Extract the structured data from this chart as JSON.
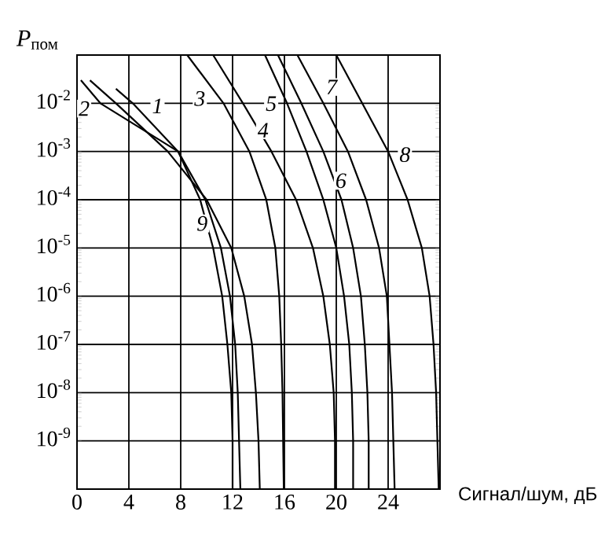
{
  "chart_data": {
    "type": "line",
    "log": "y",
    "grid": true,
    "xlabel": "Сигнал/шум, дБ",
    "ylabel": "*P*$_{пом}$",
    "xlim": [
      0,
      28
    ],
    "ylim": [
      1e-10,
      0.1
    ],
    "xticks": [
      0,
      4,
      8,
      12,
      16,
      20,
      24
    ],
    "yticks": [
      {
        "value": 1e-09,
        "label": "10$^{-9}$"
      },
      {
        "value": 1e-08,
        "label": "10$^{-8}$"
      },
      {
        "value": 1e-07,
        "label": "10$^{-7}$"
      },
      {
        "value": 1e-06,
        "label": "10$^{-6}$"
      },
      {
        "value": 1e-05,
        "label": "10$^{-5}$"
      },
      {
        "value": 0.0001,
        "label": "10$^{-4}$"
      },
      {
        "value": 0.001,
        "label": "10$^{-3}$"
      },
      {
        "value": 0.01,
        "label": "10$^{-2}$"
      }
    ],
    "series": [
      {
        "name": "1",
        "color": "#000000",
        "x": [
          3.0,
          4.3,
          7.8,
          9.9,
          11.1,
          11.8,
          12.2,
          12.4,
          12.5,
          12.6
        ],
        "values": [
          0.02,
          0.01,
          0.001,
          0.0001,
          1e-05,
          1e-06,
          1e-07,
          1e-08,
          1e-09,
          1e-10
        ]
      },
      {
        "name": "2",
        "color": "#000000",
        "x": [
          0.3,
          1.8,
          7.8,
          9.5,
          10.5,
          11.2,
          11.6,
          11.9,
          12.0,
          12.0
        ],
        "values": [
          0.03,
          0.01,
          0.001,
          0.0001,
          1e-05,
          1e-06,
          1e-07,
          1e-08,
          1e-09,
          1e-10
        ]
      },
      {
        "name": "3",
        "color": "#000000",
        "x": [
          8.5,
          11.3,
          13.3,
          14.6,
          15.3,
          15.6,
          15.75,
          15.85,
          15.9,
          15.95
        ],
        "values": [
          0.1,
          0.01,
          0.001,
          0.0001,
          1e-05,
          1e-06,
          1e-07,
          1e-08,
          1e-09,
          1e-10
        ]
      },
      {
        "name": "4",
        "color": "#000000",
        "x": [
          10.5,
          12.8,
          15.0,
          16.9,
          18.2,
          19.0,
          19.5,
          19.8,
          19.9,
          19.9
        ],
        "values": [
          0.1,
          0.01,
          0.001,
          0.0001,
          1e-05,
          1e-06,
          1e-07,
          1e-08,
          1e-09,
          1e-10
        ]
      },
      {
        "name": "5",
        "color": "#000000",
        "x": [
          14.5,
          16.2,
          17.7,
          19.0,
          20.0,
          20.6,
          21.0,
          21.2,
          21.3,
          21.3
        ],
        "values": [
          0.1,
          0.01,
          0.001,
          0.0001,
          1e-05,
          1e-06,
          1e-07,
          1e-08,
          1e-09,
          1e-10
        ]
      },
      {
        "name": "6",
        "color": "#000000",
        "x": [
          15.5,
          17.3,
          19.0,
          20.4,
          21.3,
          21.9,
          22.2,
          22.4,
          22.5,
          22.5
        ],
        "values": [
          0.1,
          0.01,
          0.001,
          0.0001,
          1e-05,
          1e-06,
          1e-07,
          1e-08,
          1e-09,
          1e-10
        ]
      },
      {
        "name": "7",
        "color": "#000000",
        "x": [
          17.0,
          19.0,
          20.9,
          22.3,
          23.3,
          23.9,
          24.1,
          24.3,
          24.4,
          24.5
        ],
        "values": [
          0.1,
          0.01,
          0.001,
          0.0001,
          1e-05,
          1e-06,
          1e-07,
          1e-08,
          1e-09,
          1e-10
        ]
      },
      {
        "name": "8",
        "color": "#000000",
        "x": [
          20.0,
          22.0,
          24.0,
          25.5,
          26.6,
          27.2,
          27.5,
          27.7,
          27.8,
          27.9
        ],
        "values": [
          0.1,
          0.01,
          0.001,
          0.0001,
          1e-05,
          1e-06,
          1e-07,
          1e-08,
          1e-09,
          1e-10
        ]
      },
      {
        "name": "9",
        "color": "#000000",
        "x": [
          1.0,
          3.0,
          7.0,
          10.0,
          11.9,
          12.9,
          13.5,
          13.8,
          14.0,
          14.1
        ],
        "values": [
          0.03,
          0.01,
          0.001,
          0.0001,
          1e-05,
          1e-06,
          1e-07,
          1e-08,
          1e-09,
          1e-10
        ]
      }
    ]
  }
}
